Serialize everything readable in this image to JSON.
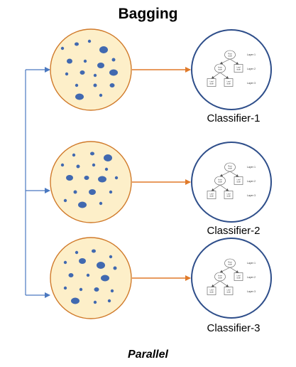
{
  "title": "Bagging",
  "footer": "Parallel",
  "colors": {
    "sample_fill": "#fdefc9",
    "sample_stroke": "#d07a2a",
    "dot_fill": "#4169b0",
    "classifier_stroke": "#2e4e8a",
    "input_arrow": "#4a78c0",
    "output_arrow": "#e07a2a"
  },
  "samples": [
    {
      "name": "sample-1"
    },
    {
      "name": "sample-2"
    },
    {
      "name": "sample-3"
    }
  ],
  "classifiers": [
    {
      "label": "Classifier-1",
      "tree": {
        "root": "Root node",
        "inner": "Inner node",
        "leaf": "Leaf node",
        "layers": [
          "Layer 1",
          "Layer 2",
          "Layer 3"
        ]
      }
    },
    {
      "label": "Classifier-2",
      "tree": {
        "root": "Root node",
        "inner": "Inner node",
        "leaf": "Leaf node",
        "layers": [
          "Layer 1",
          "Layer 2",
          "Layer 3"
        ]
      }
    },
    {
      "label": "Classifier-3",
      "tree": {
        "root": "Root node",
        "inner": "Inner node",
        "leaf": "Leaf node",
        "layers": [
          "Layer 1",
          "Layer 2",
          "Layer 3"
        ]
      }
    }
  ]
}
